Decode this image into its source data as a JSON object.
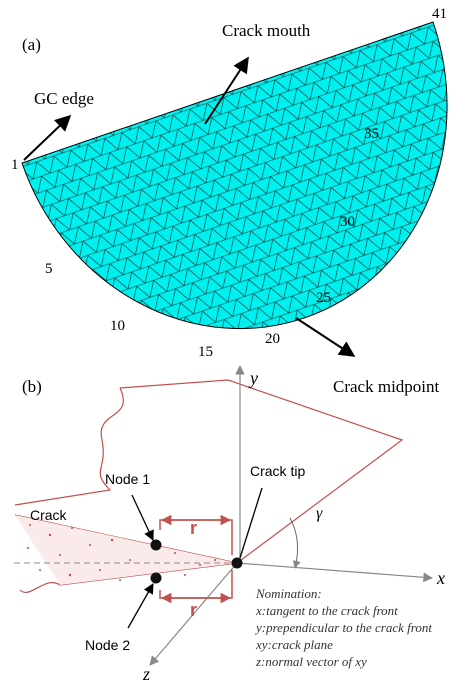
{
  "panel_a": {
    "label": "(a)",
    "annotations": {
      "crack_mouth": "Crack mouth",
      "gc_edge": "GC edge",
      "crack_midpoint": "Crack midpoint"
    },
    "node_numbers": [
      "1",
      "5",
      "10",
      "15",
      "20",
      "25",
      "30",
      "35",
      "41"
    ]
  },
  "panel_b": {
    "label": "(b)",
    "axes": {
      "x": "x",
      "y": "y",
      "z": "z"
    },
    "crack_tip": "Crack tip",
    "crack": "Crack",
    "node_1": "Node 1",
    "node_2": "Node 2",
    "r_labels": [
      "r",
      "r"
    ],
    "angle": "γ",
    "nomination": [
      "Nomination:",
      "x:tangent to the crack front",
      "y:prependicular to the crack front",
      "xy:crack plane",
      "z:normal vector of xy"
    ]
  }
}
